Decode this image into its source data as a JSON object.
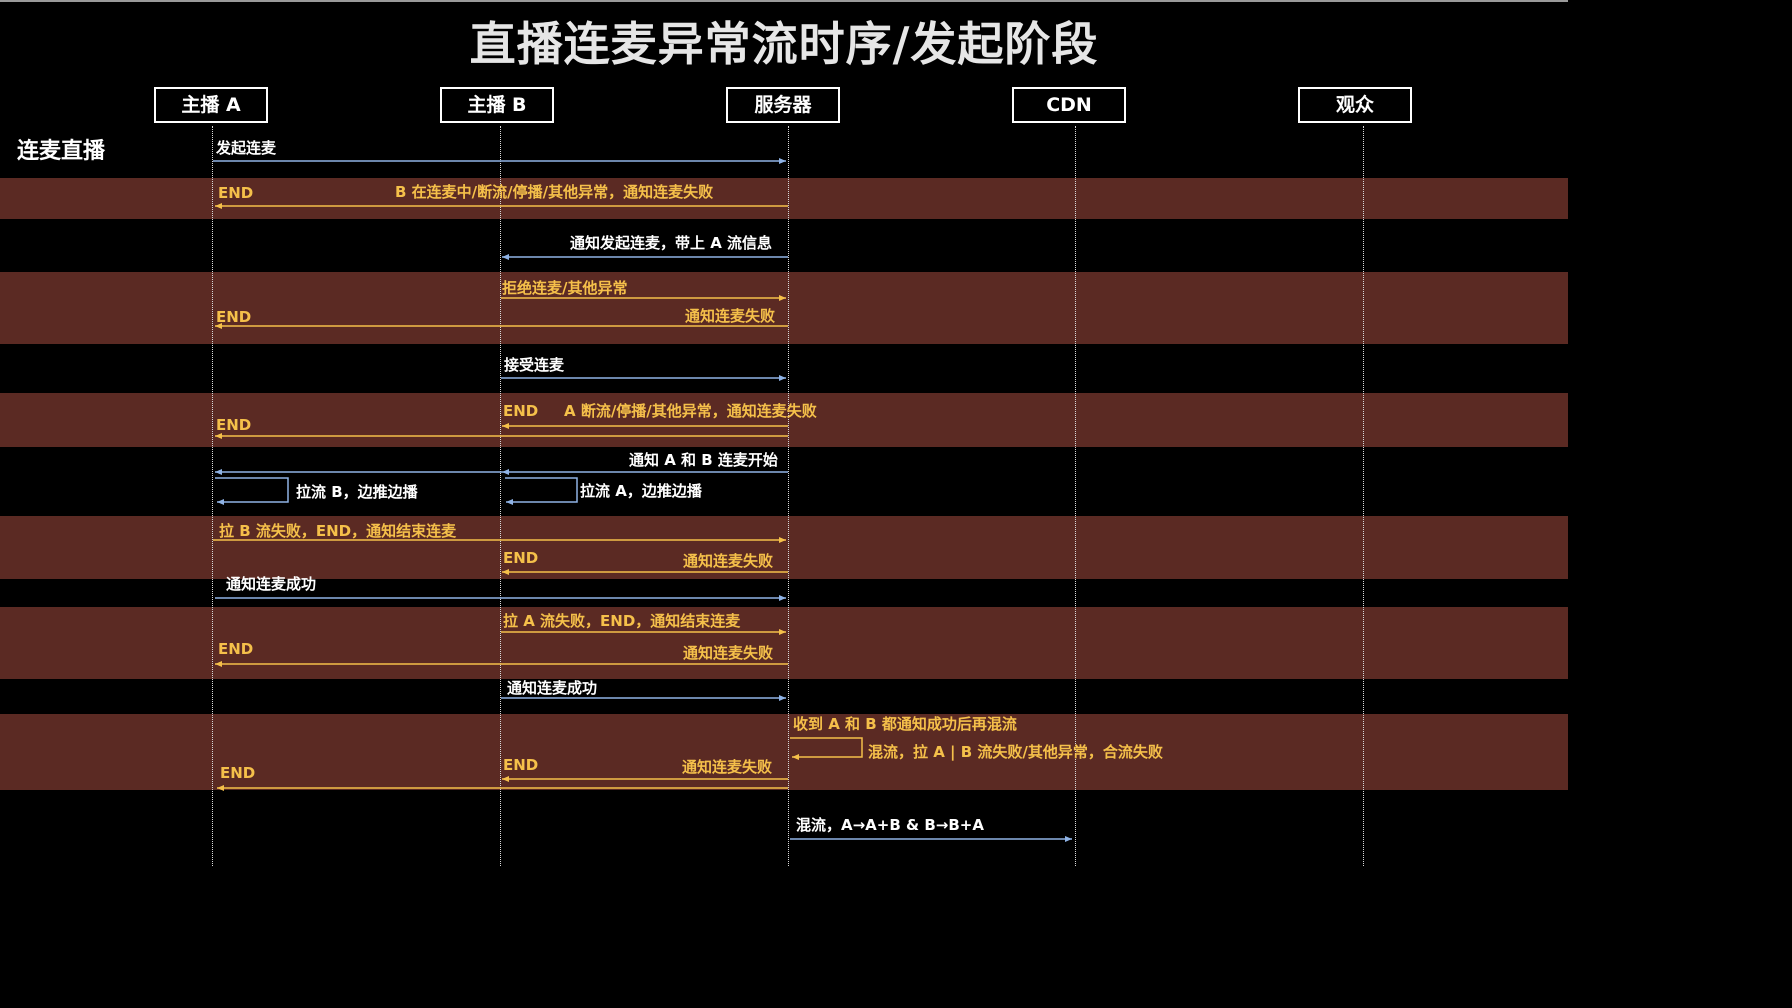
{
  "title": "直播连麦异常流时序/发起阶段",
  "section_label": "连麦直播",
  "actors": [
    "主播 A",
    "主播 B",
    "服务器",
    "CDN",
    "观众"
  ],
  "colors": {
    "background": "#000000",
    "error_band": "#5b2a23",
    "normal_arrow": "#8fb3e6",
    "error_arrow": "#f5c04a",
    "normal_text": "#ffffff",
    "error_text": "#f5c04a"
  },
  "messages": [
    {
      "text": "发起连麦",
      "kind": "normal"
    },
    {
      "text": "END",
      "kind": "error"
    },
    {
      "text": "B 在连麦中/断流/停播/其他异常，通知连麦失败",
      "kind": "error"
    },
    {
      "text": "通知发起连麦，带上 A 流信息",
      "kind": "normal"
    },
    {
      "text": "拒绝连麦/其他异常",
      "kind": "error"
    },
    {
      "text": "通知连麦失败",
      "kind": "error"
    },
    {
      "text": "END",
      "kind": "error"
    },
    {
      "text": "接受连麦",
      "kind": "normal"
    },
    {
      "text": "END",
      "kind": "error"
    },
    {
      "text": "A 断流/停播/其他异常，通知连麦失败",
      "kind": "error"
    },
    {
      "text": "END",
      "kind": "error"
    },
    {
      "text": "通知 A 和 B 连麦开始",
      "kind": "normal"
    },
    {
      "text": "拉流 B，边推边播",
      "kind": "normal"
    },
    {
      "text": "拉流 A，边推边播",
      "kind": "normal"
    },
    {
      "text": "拉 B 流失败，END，通知结束连麦",
      "kind": "error"
    },
    {
      "text": "END",
      "kind": "error"
    },
    {
      "text": "通知连麦失败",
      "kind": "error"
    },
    {
      "text": "通知连麦成功",
      "kind": "normal"
    },
    {
      "text": "拉 A 流失败，END，通知结束连麦",
      "kind": "error"
    },
    {
      "text": "END",
      "kind": "error"
    },
    {
      "text": "通知连麦失败",
      "kind": "error"
    },
    {
      "text": "通知连麦成功",
      "kind": "normal"
    },
    {
      "text": "收到 A 和 B 都通知成功后再混流",
      "kind": "error"
    },
    {
      "text": "混流，拉 A | B 流失败/其他异常，合流失败",
      "kind": "error"
    },
    {
      "text": "END",
      "kind": "error"
    },
    {
      "text": "通知连麦失败",
      "kind": "error"
    },
    {
      "text": "END",
      "kind": "error"
    },
    {
      "text": "混流，A→A+B & B→B+A",
      "kind": "normal"
    }
  ]
}
